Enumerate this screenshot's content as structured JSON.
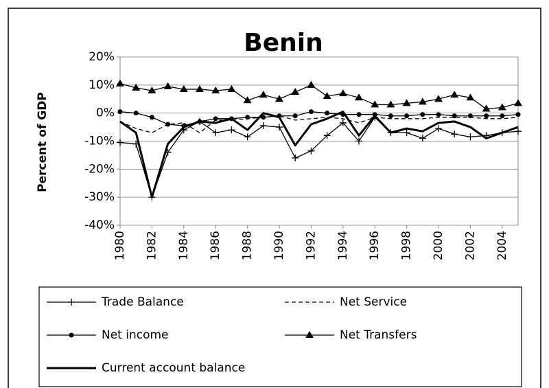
{
  "chart_data": {
    "type": "line",
    "title": "Benin",
    "y_label": "Percent of GDP",
    "x": [
      1980,
      1981,
      1982,
      1983,
      1984,
      1985,
      1986,
      1987,
      1988,
      1989,
      1990,
      1991,
      1992,
      1993,
      1994,
      1995,
      1996,
      1997,
      1998,
      1999,
      2000,
      2001,
      2002,
      2003,
      2004,
      2005
    ],
    "xlim": [
      1980,
      2005
    ],
    "xticks": [
      1980,
      1982,
      1984,
      1986,
      1988,
      1990,
      1992,
      1994,
      1996,
      1998,
      2000,
      2002,
      2004
    ],
    "ylim": [
      -40,
      20
    ],
    "yticks": [
      {
        "value": 20,
        "label": "20%"
      },
      {
        "value": 10,
        "label": "10%"
      },
      {
        "value": 0,
        "label": "0%"
      },
      {
        "value": -10,
        "label": "-10%"
      },
      {
        "value": -20,
        "label": "-20%"
      },
      {
        "value": -30,
        "label": "-30%"
      },
      {
        "value": -40,
        "label": "-40%"
      }
    ],
    "grid": true,
    "series": [
      {
        "name": "Trade Balance",
        "color": "#000000",
        "line_style": "solid",
        "line_width": 1.3,
        "marker": "plus",
        "values": [
          -10.5,
          -11,
          -30,
          -14,
          -6,
          -3,
          -7,
          -6,
          -8.5,
          -4.5,
          -5,
          -16,
          -13.5,
          -8,
          -3.5,
          -10,
          -1.5,
          -7,
          -7,
          -9,
          -5.5,
          -7.5,
          -8.5,
          -8,
          -7,
          -6.5
        ]
      },
      {
        "name": "Net Service",
        "color": "#000000",
        "line_style": "dashed",
        "line_width": 1.3,
        "marker": "none",
        "values": [
          -3,
          -5.5,
          -7,
          -4,
          -3.5,
          -7,
          -2.5,
          -2.5,
          -2,
          -1.5,
          -1,
          -2.5,
          -2,
          -1.5,
          -2,
          -3.5,
          -1.5,
          -2,
          -2,
          -2,
          -1.5,
          -1.5,
          -1.5,
          -2,
          -2,
          -1.5
        ]
      },
      {
        "name": "Net income",
        "color": "#000000",
        "line_style": "solid",
        "line_width": 1.3,
        "marker": "circle",
        "values": [
          0.5,
          0,
          -1.5,
          -4,
          -4.5,
          -3,
          -2,
          -2,
          -1.5,
          -1.5,
          -1,
          -1,
          0.5,
          0,
          -0.5,
          -0.5,
          -0.5,
          -1,
          -1,
          -0.5,
          -0.5,
          -1,
          -1,
          -1,
          -1,
          -0.5
        ]
      },
      {
        "name": "Net Transfers",
        "color": "#000000",
        "line_style": "solid",
        "line_width": 1.3,
        "marker": "triangle",
        "values": [
          10.5,
          9,
          8,
          9.5,
          8.5,
          8.5,
          8,
          8.5,
          4.5,
          6.5,
          5,
          7.5,
          10,
          6,
          7,
          5.5,
          3,
          3,
          3.5,
          4,
          5,
          6.5,
          5.5,
          1.5,
          2,
          3.5
        ]
      },
      {
        "name": "Current account balance",
        "color": "#000000",
        "line_style": "solid",
        "line_width": 3,
        "marker": "none",
        "values": [
          -3,
          -7,
          -30,
          -11,
          -5,
          -3,
          -3.5,
          -2,
          -6,
          0,
          -1.5,
          -11.5,
          -4,
          -2,
          0.5,
          -8,
          -1,
          -7,
          -5.5,
          -6.5,
          -3.5,
          -3,
          -5,
          -9,
          -7,
          -5
        ]
      }
    ]
  }
}
